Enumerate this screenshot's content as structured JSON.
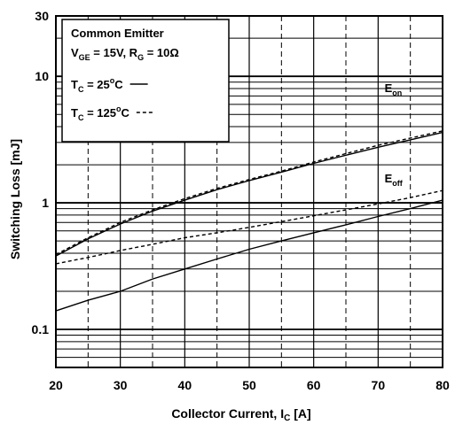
{
  "chart_data": {
    "type": "line",
    "title": "",
    "xlabel_main": "Collector Current, I",
    "xlabel_sub": "C",
    "xlabel_unit": " [A]",
    "ylabel": "Switching Loss [mJ]",
    "xlim": [
      20,
      80
    ],
    "ylim": [
      0.05,
      30
    ],
    "yscale": "log",
    "x_ticks": [
      20,
      30,
      40,
      50,
      60,
      70,
      80
    ],
    "x_tick_labels": [
      "20",
      "30",
      "40",
      "50",
      "60",
      "70",
      "80"
    ],
    "y_ticks": [
      0.1,
      1,
      10,
      30
    ],
    "y_tick_labels": [
      "0.1",
      "1",
      "10",
      "30"
    ],
    "grid": true,
    "legend": {
      "title": "Common Emitter",
      "lines": [
        {
          "parts": [
            [
              "V",
              ""
            ],
            [
              "GE",
              "sub"
            ],
            [
              " = 15V, R",
              ""
            ],
            [
              "G",
              "sub"
            ],
            [
              " = 10Ω",
              ""
            ]
          ]
        },
        {
          "parts": [
            [
              "T",
              ""
            ],
            [
              "C",
              "sub"
            ],
            [
              " = 25",
              ""
            ],
            [
              "o",
              "sup"
            ],
            [
              "C",
              ""
            ]
          ],
          "style": "solid"
        },
        {
          "parts": [
            [
              "T",
              ""
            ],
            [
              "C",
              "sub"
            ],
            [
              " = 125",
              ""
            ],
            [
              "o",
              "sup"
            ],
            [
              "C",
              ""
            ]
          ],
          "style": "dashed"
        }
      ],
      "placement": "top-left"
    },
    "curve_labels": [
      {
        "main": "E",
        "sub": "on",
        "x": 71,
        "y": 7.5
      },
      {
        "main": "E",
        "sub": "off",
        "x": 71,
        "y": 1.45
      }
    ],
    "series": [
      {
        "curve": "Eon",
        "tc": "25°C",
        "style": "solid",
        "x": [
          20,
          25,
          30,
          35,
          40,
          45,
          50,
          55,
          60,
          65,
          70,
          75,
          80
        ],
        "y": [
          0.38,
          0.52,
          0.68,
          0.86,
          1.05,
          1.27,
          1.5,
          1.75,
          2.05,
          2.38,
          2.75,
          3.15,
          3.6
        ]
      },
      {
        "curve": "Eon",
        "tc": "125°C",
        "style": "dashed",
        "x": [
          20,
          25,
          30,
          35,
          40,
          45,
          50,
          55,
          60,
          65,
          70,
          75,
          80
        ],
        "y": [
          0.39,
          0.53,
          0.7,
          0.88,
          1.08,
          1.3,
          1.53,
          1.78,
          2.1,
          2.45,
          2.85,
          3.25,
          3.7
        ]
      },
      {
        "curve": "Eoff",
        "tc": "25°C",
        "style": "solid",
        "x": [
          20,
          25,
          30,
          35,
          40,
          45,
          50,
          55,
          60,
          65,
          70,
          75,
          80
        ],
        "y": [
          0.14,
          0.17,
          0.2,
          0.25,
          0.3,
          0.36,
          0.43,
          0.5,
          0.58,
          0.67,
          0.78,
          0.9,
          1.05
        ]
      },
      {
        "curve": "Eoff",
        "tc": "125°C",
        "style": "dashed",
        "x": [
          20,
          25,
          30,
          35,
          40,
          45,
          50,
          55,
          60,
          65,
          70,
          75,
          80
        ],
        "y": [
          0.33,
          0.37,
          0.42,
          0.47,
          0.53,
          0.58,
          0.64,
          0.71,
          0.79,
          0.88,
          0.98,
          1.1,
          1.25
        ]
      }
    ]
  }
}
